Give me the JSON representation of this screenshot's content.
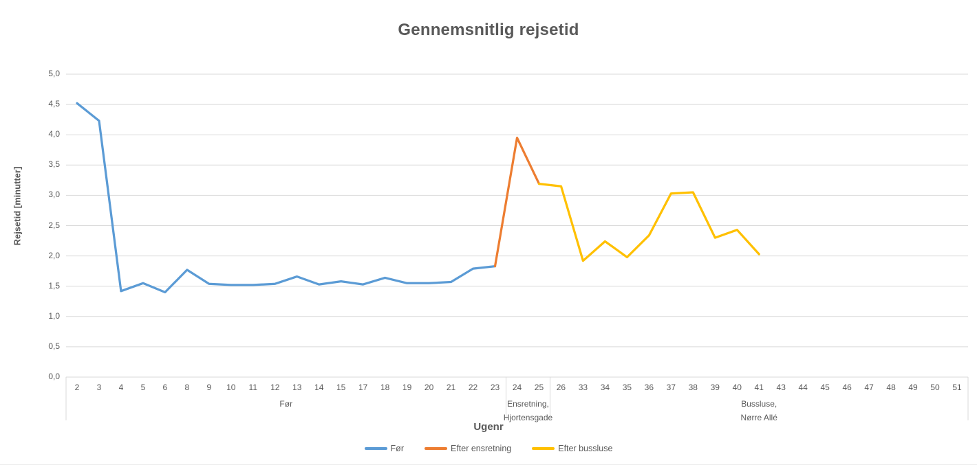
{
  "title": "Gennemsnitlig rejsetid",
  "y_axis": {
    "title": "Rejsetid [minutter]",
    "tick_labels": [
      "5,0",
      "4,5",
      "4,0",
      "3,5",
      "3,0",
      "2,5",
      "2,0",
      "1,5",
      "1,0",
      "0,5",
      "0,0"
    ],
    "min": 0,
    "max": 5,
    "step": 0.5
  },
  "x_axis": {
    "title": "Ugenr",
    "groups": [
      {
        "label_lines": [
          "Før"
        ],
        "start_index": 0,
        "end_index": 19
      },
      {
        "label_lines": [
          "Ensretning,",
          "Hjortensgade"
        ],
        "start_index": 20,
        "end_index": 21
      },
      {
        "label_lines": [
          "Bussluse,",
          "Nørre Allé"
        ],
        "start_index": 22,
        "end_index": 40
      }
    ]
  },
  "legend": [
    {
      "label": "Før",
      "color": "#5B9BD5"
    },
    {
      "label": "Efter ensretning",
      "color": "#ED7D31"
    },
    {
      "label": "Efter bussluse",
      "color": "#FFC000"
    }
  ],
  "colors": {
    "text": "#595959",
    "gridline": "#D9D9D9",
    "axis_line": "#D9D9D9",
    "series_blue": "#5B9BD5",
    "series_orange": "#ED7D31",
    "series_yellow": "#FFC000"
  },
  "chart_data": {
    "type": "line",
    "title": "Gennemsnitlig rejsetid",
    "xlabel": "Ugenr",
    "ylabel": "Rejsetid [minutter]",
    "ylim": [
      0,
      5
    ],
    "ytick_step": 0.5,
    "grid": true,
    "legend_position": "bottom",
    "categories": [
      2,
      3,
      4,
      5,
      6,
      8,
      9,
      10,
      11,
      12,
      13,
      14,
      15,
      17,
      18,
      19,
      20,
      21,
      22,
      23,
      24,
      25,
      26,
      33,
      34,
      35,
      36,
      37,
      38,
      39,
      40,
      41,
      43,
      44,
      45,
      46,
      47,
      48,
      49,
      50,
      51
    ],
    "series": [
      {
        "name": "Før",
        "color": "#5B9BD5",
        "points": [
          [
            2,
            4.52
          ],
          [
            3,
            4.23
          ],
          [
            4,
            1.42
          ],
          [
            5,
            1.55
          ],
          [
            6,
            1.4
          ],
          [
            8,
            1.77
          ],
          [
            9,
            1.54
          ],
          [
            10,
            1.52
          ],
          [
            11,
            1.52
          ],
          [
            12,
            1.54
          ],
          [
            13,
            1.66
          ],
          [
            14,
            1.53
          ],
          [
            15,
            1.58
          ],
          [
            17,
            1.53
          ],
          [
            18,
            1.64
          ],
          [
            19,
            1.55
          ],
          [
            20,
            1.55
          ],
          [
            21,
            1.57
          ],
          [
            22,
            1.79
          ],
          [
            23,
            1.83
          ]
        ]
      },
      {
        "name": "Efter ensretning",
        "color": "#ED7D31",
        "points": [
          [
            23,
            1.83
          ],
          [
            24,
            3.95
          ],
          [
            25,
            3.19
          ]
        ]
      },
      {
        "name": "Efter bussluse",
        "color": "#FFC000",
        "points": [
          [
            25,
            3.19
          ],
          [
            26,
            3.15
          ],
          [
            33,
            1.92
          ],
          [
            34,
            2.24
          ],
          [
            35,
            1.98
          ],
          [
            36,
            2.34
          ],
          [
            37,
            3.03
          ],
          [
            38,
            3.05
          ],
          [
            39,
            2.3
          ],
          [
            40,
            2.43
          ],
          [
            41,
            2.03
          ]
        ]
      }
    ]
  }
}
